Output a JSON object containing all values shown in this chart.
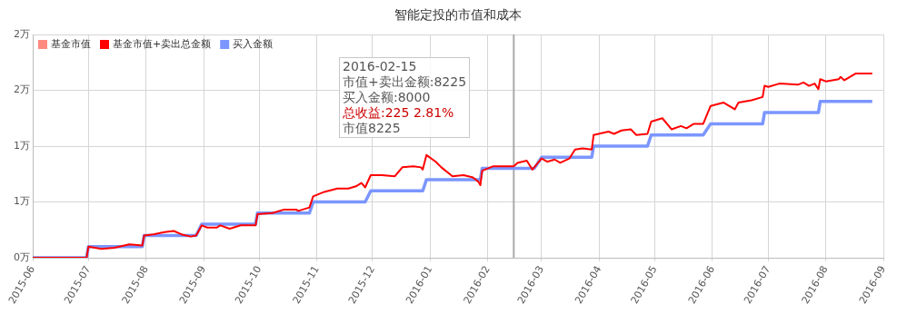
{
  "chart_data": {
    "type": "line",
    "title": "智能定投的市值和成本",
    "xlim": [
      "2015-06",
      "2016-09"
    ],
    "xticks": [
      "2015-06",
      "2015-07",
      "2015-08",
      "2015-09",
      "2015-10",
      "2015-11",
      "2015-12",
      "2016-01",
      "2016-02",
      "2016-03",
      "2016-04",
      "2016-05",
      "2016-06",
      "2016-07",
      "2016-08",
      "2016-09"
    ],
    "ylim": [
      0,
      2
    ],
    "yticks": [
      {
        "value": 0,
        "label": "0万"
      },
      {
        "value": 0.5,
        "label": "1万"
      },
      {
        "value": 1,
        "label": "1万"
      },
      {
        "value": 1.5,
        "label": "2万"
      },
      {
        "value": 2,
        "label": "2万"
      }
    ],
    "grid": true,
    "legend": "top left",
    "marker": "none",
    "line_style": "solid",
    "series": [
      {
        "name": "基金市值",
        "color": "#ff8a80"
      },
      {
        "name": "基金市值+卖出总金额",
        "color": "#ff0000",
        "x": [
          "2015-06-01",
          "2015-06-30",
          "2015-07-01",
          "2015-07-08",
          "2015-07-15",
          "2015-07-23",
          "2015-07-30",
          "2015-07-31",
          "2015-08-05",
          "2015-08-11",
          "2015-08-16",
          "2015-08-20",
          "2015-08-25",
          "2015-08-28",
          "2015-08-31",
          "2015-09-03",
          "2015-09-08",
          "2015-09-10",
          "2015-09-15",
          "2015-09-21",
          "2015-09-29",
          "2015-09-30",
          "2015-10-08",
          "2015-10-14",
          "2015-10-21",
          "2015-10-22",
          "2015-10-28",
          "2015-10-30",
          "2015-11-05",
          "2015-11-12",
          "2015-11-18",
          "2015-11-22",
          "2015-11-25",
          "2015-11-27",
          "2015-11-30",
          "2015-12-06",
          "2015-12-13",
          "2015-12-17",
          "2015-12-23",
          "2015-12-27",
          "2015-12-28",
          "2015-12-30",
          "2016-01-04",
          "2016-01-07",
          "2016-01-13",
          "2016-01-19",
          "2016-01-24",
          "2016-01-27",
          "2016-01-28",
          "2016-01-29",
          "2016-02-04",
          "2016-02-10",
          "2016-02-15",
          "2016-02-17",
          "2016-02-22",
          "2016-02-25",
          "2016-03-01",
          "2016-03-04",
          "2016-03-08",
          "2016-03-11",
          "2016-03-16",
          "2016-03-19",
          "2016-03-23",
          "2016-03-28",
          "2016-03-29",
          "2016-04-06",
          "2016-04-09",
          "2016-04-13",
          "2016-04-18",
          "2016-04-21",
          "2016-04-27",
          "2016-04-29",
          "2016-05-05",
          "2016-05-10",
          "2016-05-15",
          "2016-05-18",
          "2016-05-22",
          "2016-05-27",
          "2016-05-31",
          "2016-06-07",
          "2016-06-13",
          "2016-06-15",
          "2016-06-22",
          "2016-06-28",
          "2016-06-29",
          "2016-07-01",
          "2016-07-07",
          "2016-07-17",
          "2016-07-20",
          "2016-07-23",
          "2016-07-26",
          "2016-07-28",
          "2016-07-29",
          "2016-08-01",
          "2016-08-08",
          "2016-08-09",
          "2016-08-11",
          "2016-08-17",
          "2016-08-20",
          "2016-08-26"
        ],
        "values": [
          0,
          0,
          0.1,
          0.08,
          0.09,
          0.12,
          0.11,
          0.2,
          0.21,
          0.23,
          0.24,
          0.21,
          0.19,
          0.2,
          0.29,
          0.27,
          0.27,
          0.29,
          0.26,
          0.29,
          0.29,
          0.39,
          0.4,
          0.43,
          0.43,
          0.42,
          0.45,
          0.55,
          0.59,
          0.62,
          0.62,
          0.64,
          0.67,
          0.63,
          0.74,
          0.74,
          0.73,
          0.81,
          0.82,
          0.81,
          0.79,
          0.92,
          0.86,
          0.81,
          0.73,
          0.74,
          0.72,
          0.68,
          0.65,
          0.78,
          0.82,
          0.82,
          0.82,
          0.85,
          0.87,
          0.79,
          0.89,
          0.86,
          0.88,
          0.85,
          0.89,
          0.97,
          0.98,
          0.97,
          1.1,
          1.13,
          1.11,
          1.14,
          1.15,
          1.1,
          1.11,
          1.22,
          1.25,
          1.15,
          1.18,
          1.16,
          1.2,
          1.2,
          1.36,
          1.39,
          1.33,
          1.39,
          1.41,
          1.44,
          1.54,
          1.53,
          1.56,
          1.55,
          1.57,
          1.54,
          1.56,
          1.51,
          1.6,
          1.58,
          1.6,
          1.62,
          1.59,
          1.65,
          1.65,
          1.65
        ]
      },
      {
        "name": "买入金额",
        "color": "#7b96ff",
        "x": [
          "2015-06-01",
          "2015-06-30",
          "2015-07-01",
          "2015-07-30",
          "2015-07-31",
          "2015-08-28",
          "2015-08-31",
          "2015-09-29",
          "2015-09-30",
          "2015-10-28",
          "2015-10-30",
          "2015-11-27",
          "2015-11-30",
          "2015-12-28",
          "2015-12-30",
          "2016-01-28",
          "2016-01-29",
          "2016-02-26",
          "2016-03-01",
          "2016-03-28",
          "2016-03-29",
          "2016-04-27",
          "2016-04-29",
          "2016-05-27",
          "2016-05-31",
          "2016-06-28",
          "2016-06-29",
          "2016-07-28",
          "2016-07-29",
          "2016-08-26"
        ],
        "values": [
          0,
          0,
          0.1,
          0.1,
          0.2,
          0.2,
          0.3,
          0.3,
          0.4,
          0.4,
          0.5,
          0.5,
          0.6,
          0.6,
          0.7,
          0.7,
          0.8,
          0.8,
          0.9,
          0.9,
          1,
          1,
          1.1,
          1.1,
          1.2,
          1.2,
          1.3,
          1.3,
          1.4,
          1.4
        ]
      }
    ],
    "ref_lines": [
      {
        "axis": "x",
        "value": "2016-02-15",
        "color": "#aaaaaa"
      }
    ],
    "annotations": [
      "2016-02-15",
      "市值+卖出金额:8225",
      "买入金额:8000",
      "总收益:225 2.81%",
      "市值8225"
    ]
  }
}
